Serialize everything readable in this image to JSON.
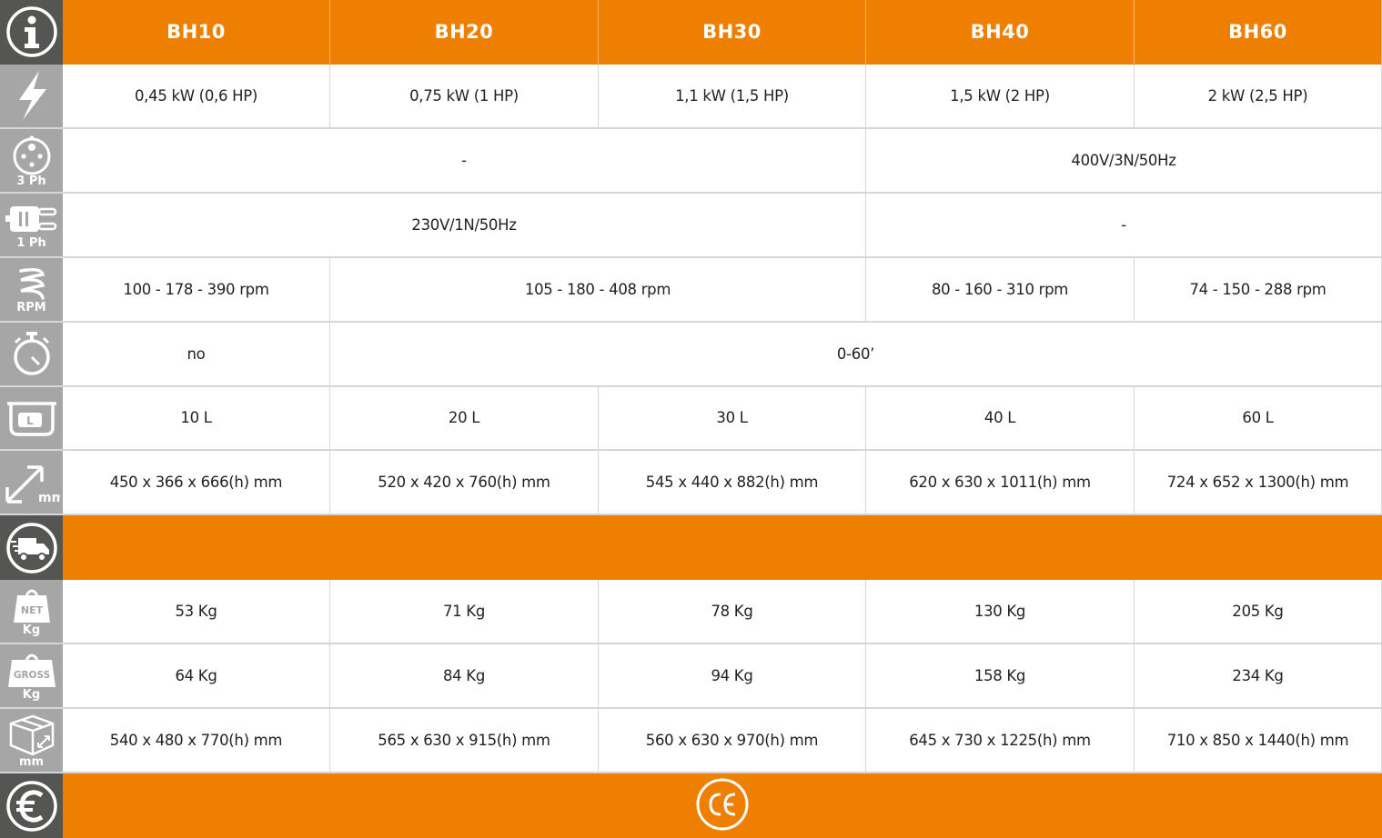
{
  "colors": {
    "accent": "#ee7f00",
    "icon_dark": "#555553",
    "icon_light": "#a6a6a6"
  },
  "rows": [
    {
      "icon": "info-icon",
      "icon_label": "",
      "type": "header",
      "cells": [
        {
          "text": "BH10",
          "span": 1
        },
        {
          "text": "BH20",
          "span": 1
        },
        {
          "text": "BH30",
          "span": 1
        },
        {
          "text": "BH40",
          "span": 1
        },
        {
          "text": "BH60",
          "span": 1
        }
      ]
    },
    {
      "icon": "power-bolt-icon",
      "icon_label": "",
      "type": "data",
      "cells": [
        {
          "text": "0,45 kW (0,6 HP)",
          "span": 1
        },
        {
          "text": "0,75 kW (1 HP)",
          "span": 1
        },
        {
          "text": "1,1 kW (1,5 HP)",
          "span": 1
        },
        {
          "text": "1,5 kW (2 HP)",
          "span": 1
        },
        {
          "text": "2 kW (2,5 HP)",
          "span": 1
        }
      ]
    },
    {
      "icon": "three-phase-plug-icon",
      "icon_label": "3 Ph",
      "type": "data",
      "cells": [
        {
          "text": "-",
          "span": 3
        },
        {
          "text": "400V/3N/50Hz",
          "span": 2
        }
      ]
    },
    {
      "icon": "single-phase-plug-icon",
      "icon_label": "1 Ph",
      "type": "data",
      "cells": [
        {
          "text": "230V/1N/50Hz",
          "span": 3
        },
        {
          "text": "-",
          "span": 2
        }
      ]
    },
    {
      "icon": "spiral-hook-icon",
      "icon_label": "RPM",
      "type": "data",
      "cells": [
        {
          "text": "100 - 178 - 390 rpm",
          "span": 1
        },
        {
          "text": "105 - 180 - 408 rpm",
          "span": 2
        },
        {
          "text": "80 - 160 - 310 rpm",
          "span": 1
        },
        {
          "text": "74 - 150 - 288 rpm",
          "span": 1
        }
      ]
    },
    {
      "icon": "timer-icon",
      "icon_label": "",
      "type": "data",
      "cells": [
        {
          "text": "no",
          "span": 1
        },
        {
          "text": "0-60’",
          "span": 4
        }
      ]
    },
    {
      "icon": "bowl-capacity-icon",
      "icon_label": "",
      "type": "data",
      "cells": [
        {
          "text": "10 L",
          "span": 1
        },
        {
          "text": "20 L",
          "span": 1
        },
        {
          "text": "30 L",
          "span": 1
        },
        {
          "text": "40 L",
          "span": 1
        },
        {
          "text": "60 L",
          "span": 1
        }
      ]
    },
    {
      "icon": "dimensions-icon",
      "icon_label": "",
      "type": "data",
      "cells": [
        {
          "text": "450 x 366 x 666(h) mm",
          "span": 1
        },
        {
          "text": "520 x 420 x 760(h) mm",
          "span": 1
        },
        {
          "text": "545 x 440 x 882(h) mm",
          "span": 1
        },
        {
          "text": "620 x 630 x 1011(h) mm",
          "span": 1
        },
        {
          "text": "724 x 652 x 1300(h) mm",
          "span": 1
        }
      ]
    },
    {
      "icon": "delivery-truck-icon",
      "icon_label": "",
      "type": "band",
      "cells": []
    },
    {
      "icon": "net-weight-icon",
      "icon_label": "Kg",
      "type": "data",
      "cells": [
        {
          "text": "53 Kg",
          "span": 1
        },
        {
          "text": "71 Kg",
          "span": 1
        },
        {
          "text": "78 Kg",
          "span": 1
        },
        {
          "text": "130 Kg",
          "span": 1
        },
        {
          "text": "205 Kg",
          "span": 1
        }
      ]
    },
    {
      "icon": "gross-weight-icon",
      "icon_label": "Kg",
      "type": "data",
      "cells": [
        {
          "text": "64 Kg",
          "span": 1
        },
        {
          "text": "84 Kg",
          "span": 1
        },
        {
          "text": "94 Kg",
          "span": 1
        },
        {
          "text": "158 Kg",
          "span": 1
        },
        {
          "text": "234 Kg",
          "span": 1
        }
      ]
    },
    {
      "icon": "package-box-icon",
      "icon_label": "mm",
      "type": "data",
      "cells": [
        {
          "text": "540 x 480 x 770(h) mm",
          "span": 1
        },
        {
          "text": "565 x 630 x 915(h) mm",
          "span": 1
        },
        {
          "text": "560 x 630 x 970(h) mm",
          "span": 1
        },
        {
          "text": "645 x 730 x 1225(h) mm",
          "span": 1
        },
        {
          "text": "710 x 850 x 1440(h) mm",
          "span": 1
        }
      ]
    },
    {
      "icon": "euro-icon",
      "icon_label": "",
      "type": "footer",
      "cells": []
    }
  ],
  "icon_texts": {
    "net": "NET",
    "gross": "GROSS",
    "bowl": "L",
    "ce": "CE"
  }
}
